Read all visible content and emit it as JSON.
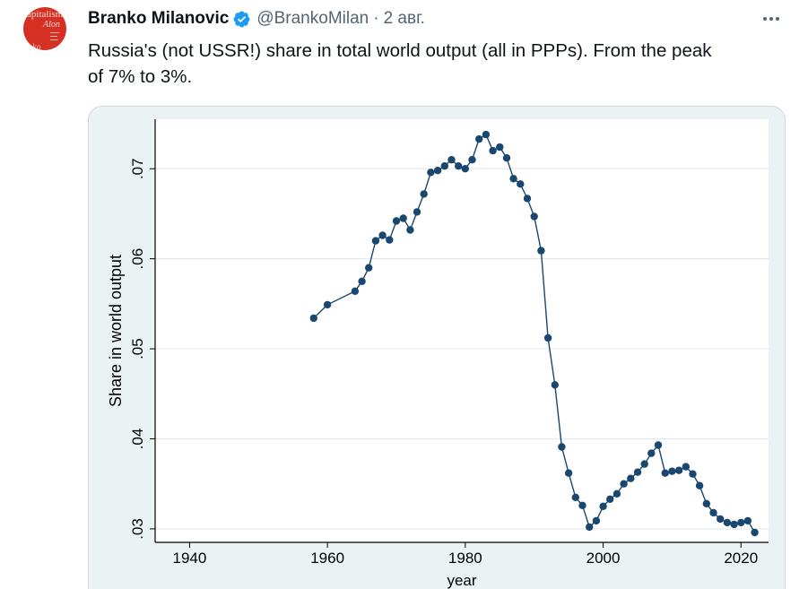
{
  "tweet": {
    "display_name": "Branko Milanovic",
    "handle": "@BrankoMilan",
    "separator": "·",
    "date": "2 авг.",
    "text_line1": "Russia's (not USSR!) share in total world output (all in PPPs). From the peak",
    "text_line2": "of 7% to 3%.",
    "avatar_text": [
      "apitalism",
      "Alon",
      "nko"
    ],
    "verified_color": "#1d9bf0",
    "avatar_color": "#d62f24"
  },
  "chart_data": {
    "type": "line",
    "xlabel": "year",
    "ylabel": "Share in world output",
    "xlim": [
      1935,
      2024
    ],
    "ylim": [
      0.0285,
      0.0755
    ],
    "x_ticks": [
      1940,
      1960,
      1980,
      2000,
      2020
    ],
    "x_tick_labels": [
      "1940",
      "1960",
      "1980",
      "2000",
      "2020"
    ],
    "y_ticks": [
      0.03,
      0.04,
      0.05,
      0.06,
      0.07
    ],
    "y_tick_labels": [
      ".03",
      ".04",
      ".05",
      ".06",
      ".07"
    ],
    "grid": true,
    "series": [
      {
        "color": "#1a476f",
        "x": [
          1958,
          1960,
          1964,
          1965,
          1966,
          1967,
          1968,
          1969,
          1970,
          1971,
          1972,
          1973,
          1974,
          1975,
          1976,
          1977,
          1978,
          1979,
          1980,
          1981,
          1982,
          1983,
          1984,
          1985,
          1986,
          1987,
          1988,
          1989,
          1990,
          1991,
          1992,
          1993,
          1994,
          1995,
          1996,
          1997,
          1998,
          1999,
          2000,
          2001,
          2002,
          2003,
          2004,
          2005,
          2006,
          2007,
          2008,
          2009,
          2010,
          2011,
          2012,
          2013,
          2014,
          2015,
          2016,
          2017,
          2018,
          2019,
          2020,
          2021,
          2022
        ],
        "y": [
          0.0534,
          0.0549,
          0.0564,
          0.0575,
          0.059,
          0.062,
          0.0626,
          0.0621,
          0.0642,
          0.0645,
          0.0632,
          0.0652,
          0.0672,
          0.0696,
          0.0698,
          0.0703,
          0.071,
          0.0703,
          0.07,
          0.071,
          0.0733,
          0.0738,
          0.072,
          0.0724,
          0.0712,
          0.0689,
          0.0683,
          0.0667,
          0.0647,
          0.0609,
          0.0512,
          0.046,
          0.0391,
          0.0362,
          0.0335,
          0.0326,
          0.0302,
          0.0309,
          0.0325,
          0.0333,
          0.0339,
          0.035,
          0.0356,
          0.0363,
          0.0372,
          0.0384,
          0.0393,
          0.0362,
          0.0364,
          0.0365,
          0.0369,
          0.0361,
          0.0348,
          0.0328,
          0.0318,
          0.0311,
          0.0307,
          0.0305,
          0.0307,
          0.0309,
          0.0296
        ]
      }
    ]
  }
}
